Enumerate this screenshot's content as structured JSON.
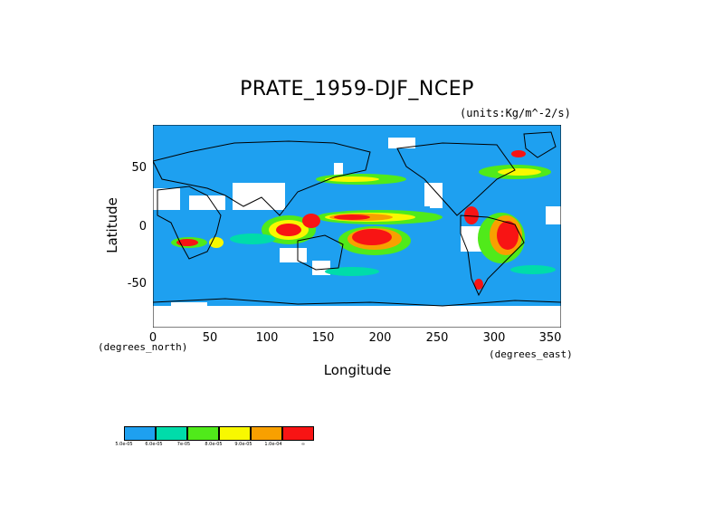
{
  "title": "PRATE_1959-DJF_NCEP",
  "units": "(units:Kg/m^-2/s)",
  "axes": {
    "ylabel": "Latitude",
    "xlabel": "Longitude",
    "x_unit_left": "(degrees_north)",
    "x_unit_right": "(degrees_east)",
    "yticks": [
      "50",
      "0",
      "-50"
    ],
    "xticks": [
      "0",
      "50",
      "100",
      "150",
      "200",
      "250",
      "300",
      "350"
    ]
  },
  "map": {
    "projection": "equirectangular",
    "lon_range": [
      0,
      360
    ],
    "lat_range": [
      -90,
      90
    ],
    "background_color": "#1ea0f0"
  },
  "legend": {
    "colors": [
      "#1ea0f0",
      "#00dcaa",
      "#50ea1a",
      "#f8f800",
      "#f8a000",
      "#f81414"
    ],
    "labels": [
      "5.0e-05",
      "6.0e-05",
      "7e-05",
      "8.0e-05",
      "9.0e-05",
      "1.0e-04",
      "∞"
    ]
  }
}
